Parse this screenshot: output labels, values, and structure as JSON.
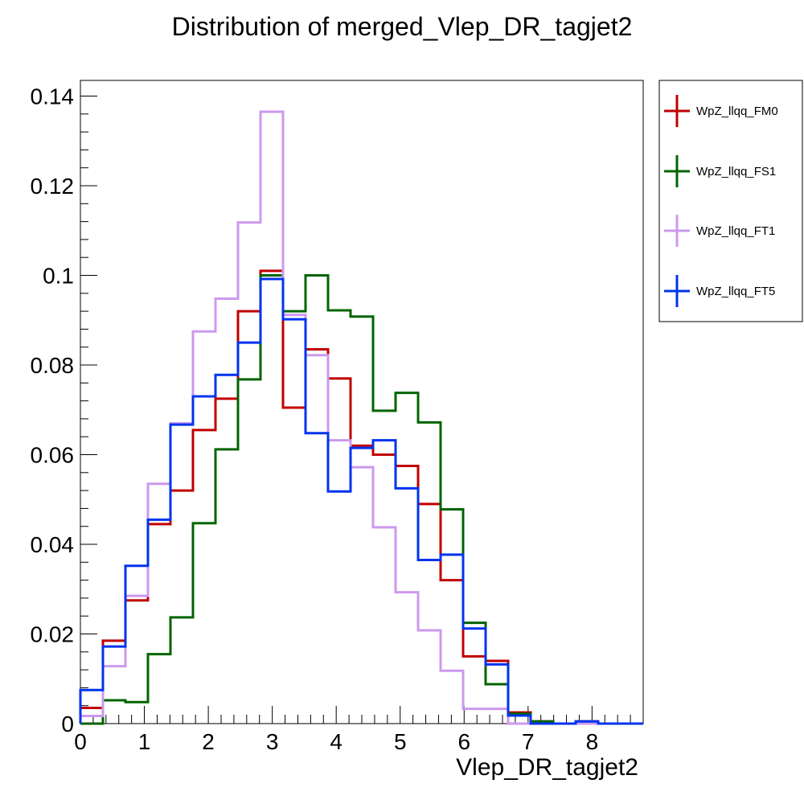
{
  "chart_data": {
    "type": "histogram",
    "title": "Distribution of merged_Vlep_DR_tagjet2",
    "xlabel": "Vlep_DR_tagjet2",
    "ylabel": "",
    "xlim": [
      0,
      8.8
    ],
    "ylim": [
      0,
      0.1435
    ],
    "bin_edges": [
      0,
      0.352,
      0.704,
      1.056,
      1.408,
      1.76,
      2.112,
      2.464,
      2.816,
      3.168,
      3.52,
      3.872,
      4.224,
      4.576,
      4.928,
      5.28,
      5.632,
      5.984,
      6.336,
      6.688,
      7.04,
      7.392,
      7.744,
      8.096,
      8.448,
      8.8
    ],
    "x_ticks": [
      "0",
      "1",
      "2",
      "3",
      "4",
      "5",
      "6",
      "7",
      "8"
    ],
    "x_tick_values": [
      0,
      1,
      2,
      3,
      4,
      5,
      6,
      7,
      8
    ],
    "y_ticks": [
      "0",
      "0.02",
      "0.04",
      "0.06",
      "0.08",
      "0.1",
      "0.12",
      "0.14"
    ],
    "y_tick_values": [
      0,
      0.02,
      0.04,
      0.06,
      0.08,
      0.1,
      0.12,
      0.14
    ],
    "grid": false,
    "legend_position": "right",
    "series": [
      {
        "name": "WpZ_llqq_FM0",
        "color": "#c00000",
        "values": [
          0.0035,
          0.0185,
          0.0275,
          0.0445,
          0.052,
          0.0655,
          0.0725,
          0.092,
          0.101,
          0.0705,
          0.0835,
          0.077,
          0.062,
          0.06,
          0.0575,
          0.049,
          0.032,
          0.015,
          0.014,
          0.0025,
          0.0005,
          0,
          0.0005,
          0,
          0
        ]
      },
      {
        "name": "WpZ_llqq_FS1",
        "color": "#006400",
        "values": [
          0,
          0.0052,
          0.0048,
          0.0155,
          0.0237,
          0.0447,
          0.0612,
          0.0768,
          0.1,
          0.092,
          0.1,
          0.0922,
          0.0908,
          0.0698,
          0.0738,
          0.0672,
          0.0478,
          0.0225,
          0.0088,
          0.0022,
          0.0005,
          0,
          0,
          0,
          0
        ]
      },
      {
        "name": "WpZ_llqq_FT1",
        "color": "#cc99ee",
        "values": [
          0.0017,
          0.0128,
          0.0285,
          0.0535,
          0.067,
          0.0875,
          0.0948,
          0.1118,
          0.1365,
          0.0912,
          0.0822,
          0.0632,
          0.0572,
          0.0438,
          0.0293,
          0.0208,
          0.0118,
          0.0033,
          0.0033,
          0,
          0,
          0,
          0,
          0,
          0
        ]
      },
      {
        "name": "WpZ_llqq_FT5",
        "color": "#0033ee",
        "values": [
          0.0075,
          0.0172,
          0.0352,
          0.0455,
          0.0667,
          0.073,
          0.0778,
          0.085,
          0.0992,
          0.0902,
          0.0648,
          0.0518,
          0.0615,
          0.0632,
          0.0525,
          0.0365,
          0.0377,
          0.0212,
          0.0132,
          0.0018,
          0,
          0,
          0.0005,
          0,
          0
        ]
      }
    ]
  }
}
